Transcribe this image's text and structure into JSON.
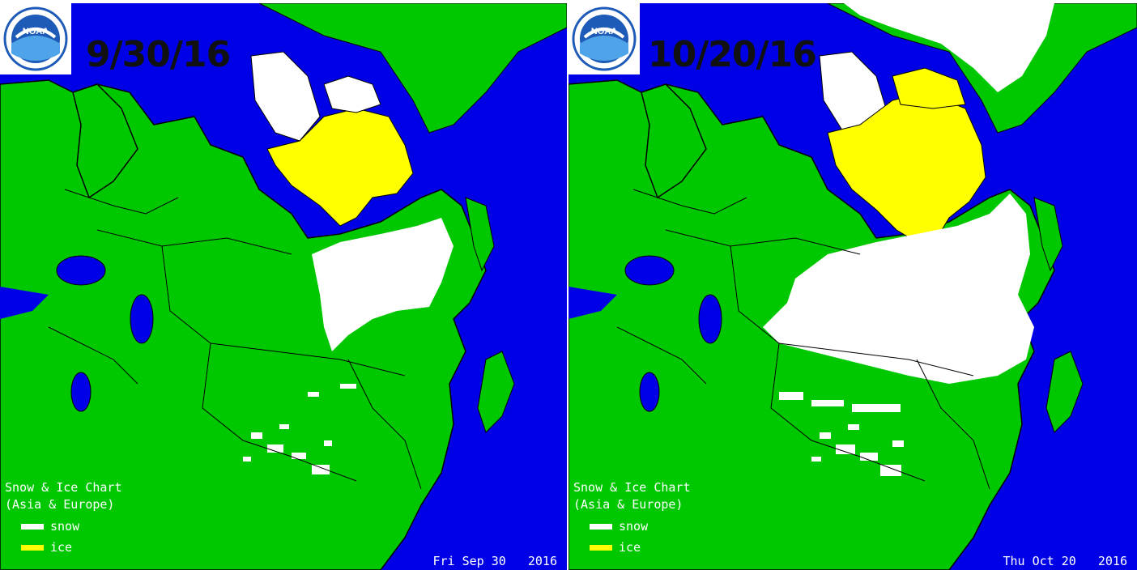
{
  "panels": [
    {
      "date_label": "9/30/16",
      "logo_text": "NOAA",
      "legend_title_line1": "Snow & Ice Chart",
      "legend_title_line2": "(Asia & Europe)",
      "legend_snow": "snow",
      "legend_ice": "ice",
      "footer_date": "Fri Sep 30   2016"
    },
    {
      "date_label": "10/20/16",
      "logo_text": "NOAA",
      "legend_title_line1": "Snow & Ice Chart",
      "legend_title_line2": "(Asia & Europe)",
      "legend_snow": "snow",
      "legend_ice": "ice",
      "footer_date": "Thu Oct 20   2016"
    }
  ],
  "colors": {
    "ocean": "#0000e6",
    "land": "#00c800",
    "snow": "#ffffff",
    "ice": "#ffff00",
    "border": "#000000"
  }
}
